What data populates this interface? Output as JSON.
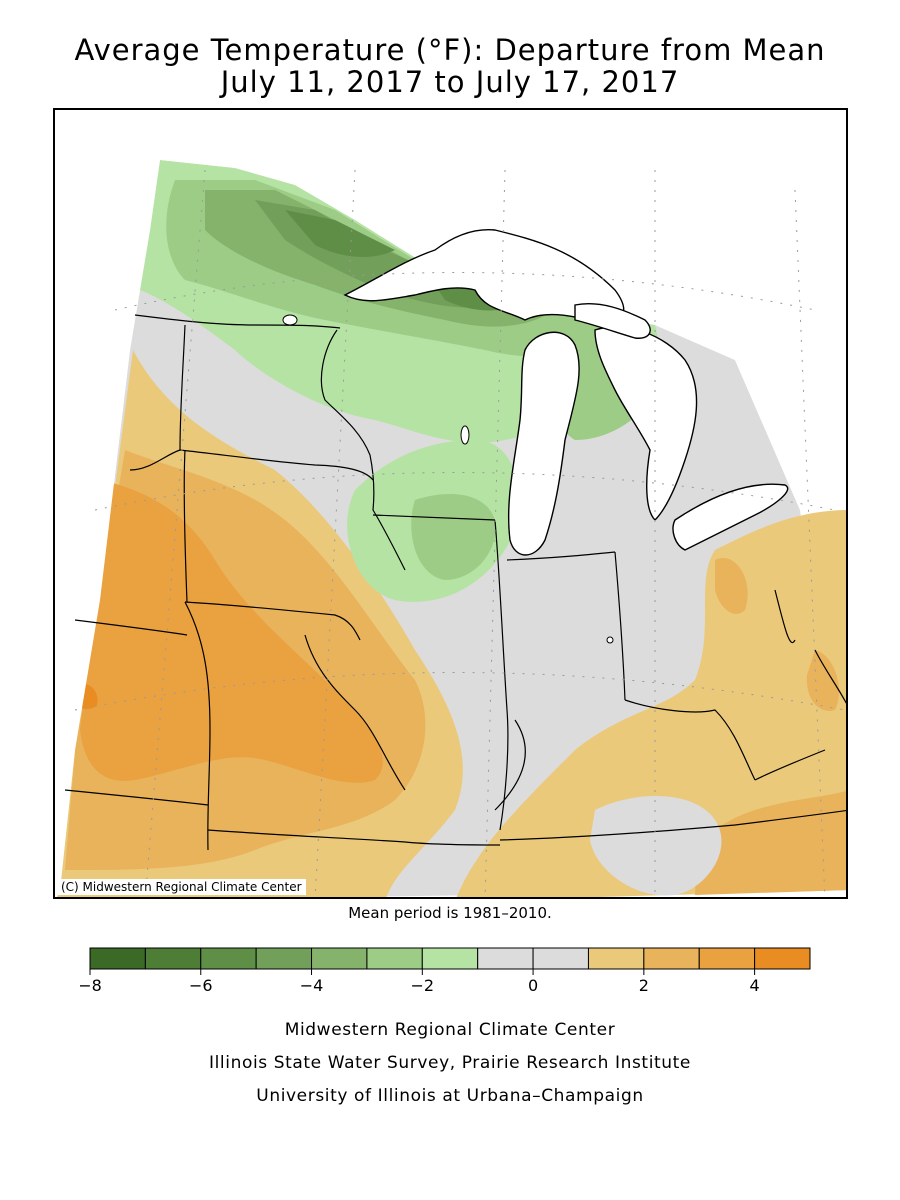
{
  "title": {
    "line1": "Average Temperature (°F): Departure from Mean",
    "line2": "July 11, 2017 to July 17, 2017"
  },
  "map": {
    "copyright": "(C) Midwestern Regional Climate Center",
    "water_color": "#ffffff",
    "border_color": "#000000",
    "grid_color": "#9a9a9a"
  },
  "mean_period": "Mean period is 1981–2010.",
  "legend": {
    "colors": [
      "#3b6a26",
      "#4e7d36",
      "#5f8e47",
      "#72a05a",
      "#86b36c",
      "#9ccc86",
      "#b5e3a3",
      "#dcdcdc",
      "#dcdcdc",
      "#ebc97a",
      "#e9b35b",
      "#eaa140",
      "#e98d22"
    ],
    "bin_edges": [
      -8,
      -7,
      -6,
      -5,
      -4,
      -3,
      -2,
      -1,
      0,
      1,
      2,
      3,
      4,
      5
    ],
    "tick_labels": [
      {
        "value": -8,
        "text": "−8"
      },
      {
        "value": -6,
        "text": "−6"
      },
      {
        "value": -4,
        "text": "−4"
      },
      {
        "value": -2,
        "text": "−2"
      },
      {
        "value": 0,
        "text": "0"
      },
      {
        "value": 2,
        "text": "2"
      },
      {
        "value": 4,
        "text": "4"
      }
    ]
  },
  "footer": {
    "line1": "Midwestern Regional Climate Center",
    "line2": "Illinois State Water Survey, Prairie Research Institute",
    "line3": "University of Illinois at Urbana–Champaign"
  }
}
